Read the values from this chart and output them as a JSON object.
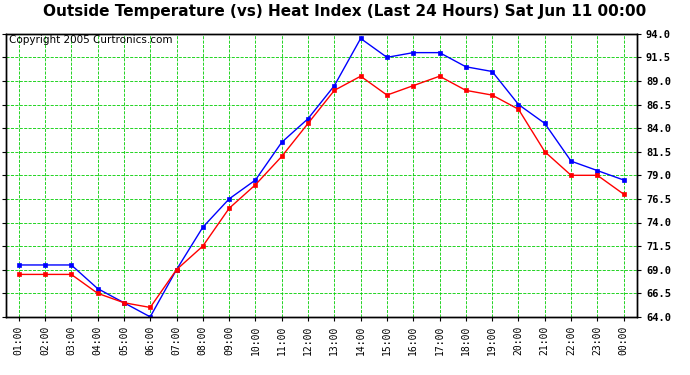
{
  "title": "Outside Temperature (vs) Heat Index (Last 24 Hours) Sat Jun 11 00:00",
  "copyright_text": "Copyright 2005 Curtronics.com",
  "x_labels": [
    "01:00",
    "02:00",
    "03:00",
    "04:00",
    "05:00",
    "06:00",
    "07:00",
    "08:00",
    "09:00",
    "10:00",
    "11:00",
    "12:00",
    "13:00",
    "14:00",
    "15:00",
    "16:00",
    "17:00",
    "18:00",
    "19:00",
    "20:00",
    "21:00",
    "22:00",
    "23:00",
    "00:00"
  ],
  "blue_data": [
    69.5,
    69.5,
    69.5,
    67.0,
    65.5,
    64.0,
    69.0,
    73.5,
    76.5,
    78.5,
    82.5,
    85.0,
    88.5,
    93.5,
    91.5,
    92.0,
    92.0,
    90.5,
    90.0,
    86.5,
    84.5,
    80.5,
    79.5,
    78.5
  ],
  "red_data": [
    68.5,
    68.5,
    68.5,
    66.5,
    65.5,
    65.0,
    69.0,
    71.5,
    75.5,
    78.0,
    81.0,
    84.5,
    88.0,
    89.5,
    87.5,
    88.5,
    89.5,
    88.0,
    87.5,
    86.0,
    81.5,
    79.0,
    79.0,
    77.0
  ],
  "blue_color": "#0000FF",
  "red_color": "#FF0000",
  "bg_color": "#FFFFFF",
  "plot_bg_color": "#FFFFFF",
  "grid_color": "#00CC00",
  "border_color": "#000000",
  "ylim_min": 64.0,
  "ylim_max": 94.0,
  "ytick_step": 2.5,
  "title_fontsize": 11,
  "copyright_fontsize": 7.5
}
